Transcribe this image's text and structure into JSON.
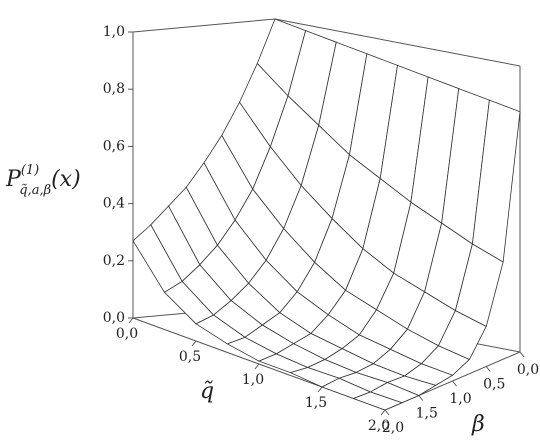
{
  "chart_data": {
    "type": "surface",
    "zlabel": {
      "main": "P",
      "sup": "(1)",
      "sub": "q̃,a,β",
      "tail": "(x)"
    },
    "xlabel": "q̃",
    "ylabel": "β",
    "x": [
      0,
      0.25,
      0.5,
      0.75,
      1,
      1.25,
      1.5,
      1.75,
      2
    ],
    "y": [
      0,
      0.25,
      0.5,
      0.75,
      1,
      1.25,
      1.5,
      1.75,
      2
    ],
    "z": [
      [
        1,
        0.85,
        0.72,
        0.61,
        0.52,
        0.44,
        0.38,
        0.32,
        0.27
      ],
      [
        0.98,
        0.76,
        0.59,
        0.45,
        0.35,
        0.27,
        0.21,
        0.16,
        0.13
      ],
      [
        0.96,
        0.68,
        0.48,
        0.34,
        0.24,
        0.17,
        0.12,
        0.08,
        0.06
      ],
      [
        0.94,
        0.6,
        0.39,
        0.25,
        0.16,
        0.1,
        0.07,
        0.04,
        0.03
      ],
      [
        0.92,
        0.54,
        0.31,
        0.18,
        0.11,
        0.06,
        0.04,
        0.02,
        0.01
      ],
      [
        0.9,
        0.48,
        0.25,
        0.14,
        0.07,
        0.04,
        0.02,
        0.01,
        0.01
      ],
      [
        0.88,
        0.43,
        0.21,
        0.1,
        0.05,
        0.02,
        0.01,
        0.01,
        0
      ],
      [
        0.86,
        0.38,
        0.17,
        0.07,
        0.03,
        0.01,
        0.01,
        0,
        0
      ],
      [
        0.84,
        0.34,
        0.14,
        0.05,
        0.02,
        0.01,
        0,
        0,
        0
      ]
    ],
    "xlim": [
      0,
      2
    ],
    "ylim": [
      0,
      2
    ],
    "zlim": [
      0,
      1
    ],
    "xticks": [
      {
        "value": 0,
        "label": "0,0"
      },
      {
        "value": 0.5,
        "label": "0,5"
      },
      {
        "value": 1,
        "label": "1,0"
      },
      {
        "value": 1.5,
        "label": "1,5"
      },
      {
        "value": 2,
        "label": "2,0"
      }
    ],
    "yticks": [
      {
        "value": 0,
        "label": "0,0"
      },
      {
        "value": 0.5,
        "label": "0,5"
      },
      {
        "value": 1,
        "label": "1,0"
      },
      {
        "value": 1.5,
        "label": "1,5"
      },
      {
        "value": 2,
        "label": "2,0"
      }
    ],
    "zticks": [
      {
        "value": 0,
        "label": "0,0"
      },
      {
        "value": 0.2,
        "label": "0,2"
      },
      {
        "value": 0.4,
        "label": "0,4"
      },
      {
        "value": 0.6,
        "label": "0,6"
      },
      {
        "value": 0.8,
        "label": "0,8"
      },
      {
        "value": 1,
        "label": "1,0"
      }
    ],
    "color": "#333333"
  }
}
